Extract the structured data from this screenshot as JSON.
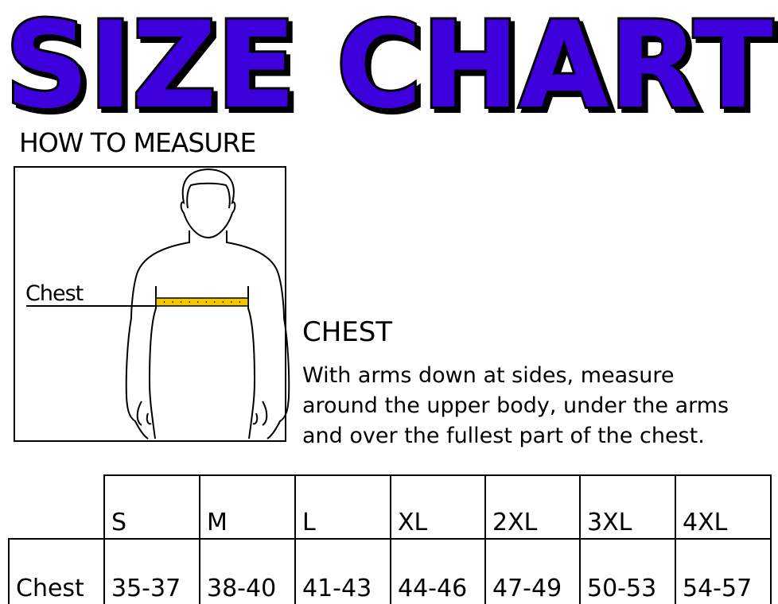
{
  "title": "SIZE CHART",
  "colors": {
    "title_fill": "#3d00dd",
    "title_outline": "#000000",
    "tape": "#f5c500"
  },
  "how_to_measure": "HOW TO MEASURE",
  "figure": {
    "chest_label": "Chest"
  },
  "instructions": {
    "heading": "CHEST",
    "lines": [
      "With arms down at sides, measure",
      "around the upper body, under the arms",
      "and over the fullest part of the chest."
    ]
  },
  "table": {
    "sizes": [
      "S",
      "M",
      "L",
      "XL",
      "2XL",
      "3XL",
      "4XL"
    ],
    "row_label": "Chest",
    "values": [
      "35-37",
      "38-40",
      "41-43",
      "44-46",
      "47-49",
      "50-53",
      "54-57"
    ]
  }
}
